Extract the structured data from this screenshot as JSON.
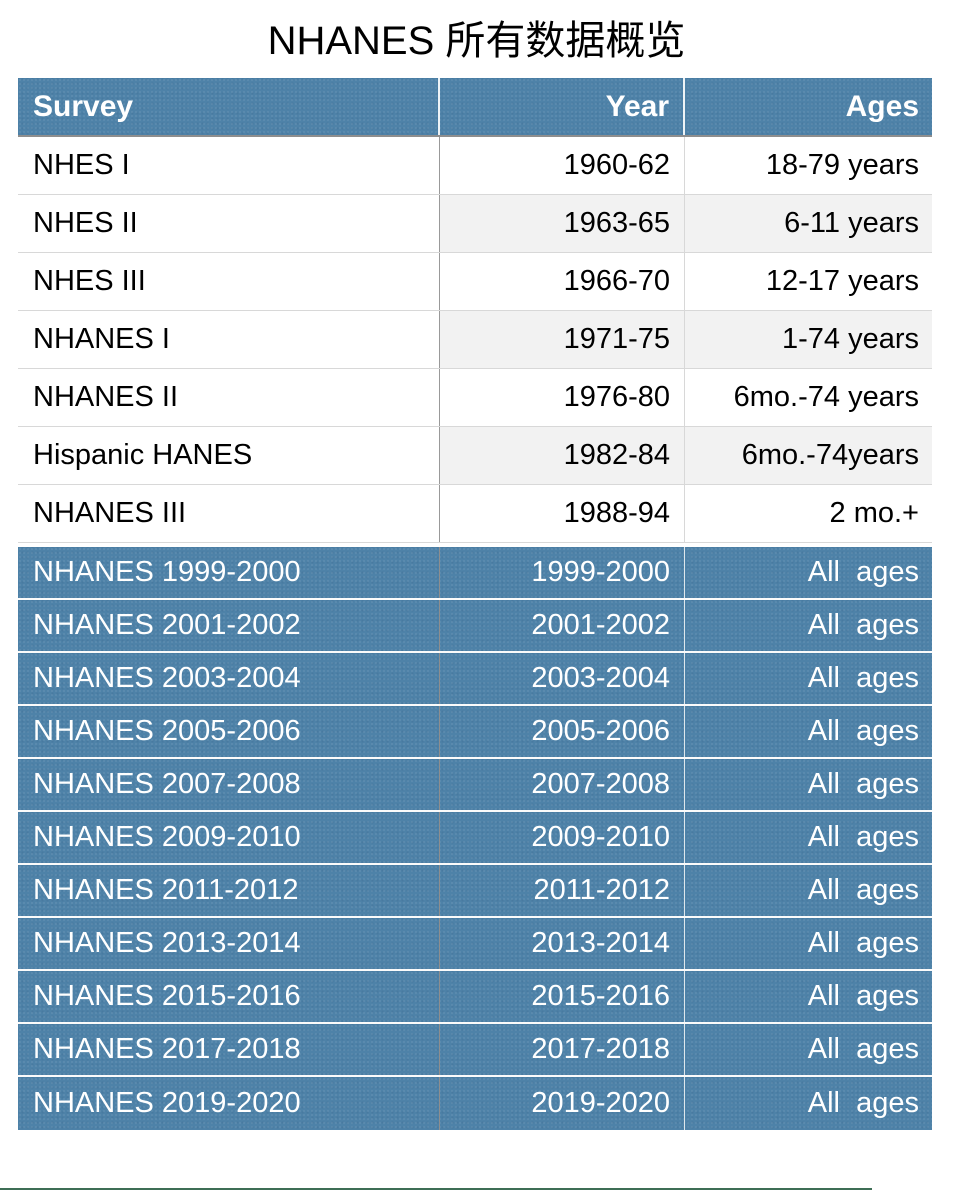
{
  "title": "NHANES 所有数据概览",
  "colors": {
    "table_blue": "#4e82a8",
    "zebra_gray": "#f2f2f2",
    "header_divider": "#8e8e8e",
    "row_divider": "#d8d8d8",
    "bottom_line": "#3e6e55",
    "header_text": "#ffffff",
    "body_text": "#000000"
  },
  "table": {
    "columns": [
      {
        "key": "survey",
        "label": "Survey",
        "align": "left"
      },
      {
        "key": "year",
        "label": "Year",
        "align": "right"
      },
      {
        "key": "ages",
        "label": "Ages",
        "align": "right"
      }
    ],
    "rows": [
      {
        "survey": "NHES I",
        "year": "1960-62",
        "ages": "18-79 years",
        "section": "early",
        "shaded": false
      },
      {
        "survey": "NHES II",
        "year": "1963-65",
        "ages": "6-11 years",
        "section": "early",
        "shaded": true
      },
      {
        "survey": "NHES III",
        "year": "1966-70",
        "ages": "12-17 years",
        "section": "early",
        "shaded": false
      },
      {
        "survey": "NHANES I",
        "year": "1971-75",
        "ages": "1-74 years",
        "section": "early",
        "shaded": true
      },
      {
        "survey": "NHANES II",
        "year": "1976-80",
        "ages": "6mo.-74 years",
        "section": "early",
        "shaded": false
      },
      {
        "survey": "Hispanic HANES",
        "year": "1982-84",
        "ages": "6mo.-74years",
        "section": "early",
        "shaded": true
      },
      {
        "survey": "NHANES III",
        "year": "1988-94",
        "ages": "2 mo.+",
        "section": "early",
        "shaded": false
      },
      {
        "survey": "NHANES 1999-2000",
        "year": "1999-2000",
        "ages": "All  ages",
        "section": "continuous",
        "shaded": false
      },
      {
        "survey": "NHANES 2001-2002",
        "year": "2001-2002",
        "ages": "All  ages",
        "section": "continuous",
        "shaded": false
      },
      {
        "survey": "NHANES 2003-2004",
        "year": "2003-2004",
        "ages": "All  ages",
        "section": "continuous",
        "shaded": false
      },
      {
        "survey": "NHANES 2005-2006",
        "year": "2005-2006",
        "ages": "All  ages",
        "section": "continuous",
        "shaded": false
      },
      {
        "survey": "NHANES 2007-2008",
        "year": "2007-2008",
        "ages": "All  ages",
        "section": "continuous",
        "shaded": false
      },
      {
        "survey": "NHANES 2009-2010",
        "year": "2009-2010",
        "ages": "All  ages",
        "section": "continuous",
        "shaded": false
      },
      {
        "survey": "NHANES 2011-2012",
        "year": "2011-2012",
        "ages": "All  ages",
        "section": "continuous",
        "shaded": false
      },
      {
        "survey": "NHANES 2013-2014",
        "year": "2013-2014",
        "ages": "All  ages",
        "section": "continuous",
        "shaded": false
      },
      {
        "survey": "NHANES 2015-2016",
        "year": "2015-2016",
        "ages": "All  ages",
        "section": "continuous",
        "shaded": false
      },
      {
        "survey": "NHANES 2017-2018",
        "year": "2017-2018",
        "ages": "All  ages",
        "section": "continuous",
        "shaded": false
      },
      {
        "survey": "NHANES 2019-2020",
        "year": "2019-2020",
        "ages": "All  ages",
        "section": "continuous",
        "shaded": false
      }
    ]
  }
}
